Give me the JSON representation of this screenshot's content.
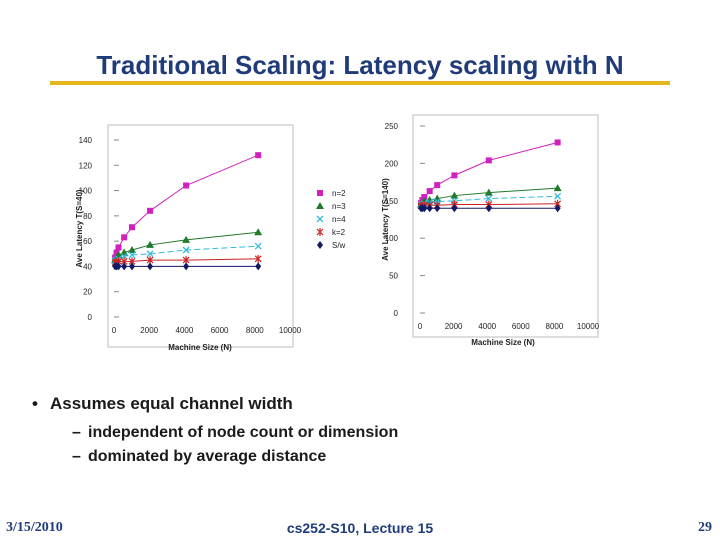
{
  "slide": {
    "title": "Traditional Scaling: Latency scaling with N",
    "bullets": [
      {
        "text": "Assumes equal channel width",
        "sub": [
          "independent of node count or dimension",
          "dominated by average distance"
        ]
      }
    ],
    "footer": {
      "date": "3/15/2010",
      "course": "cs252-S10, Lecture 15",
      "page": "29"
    }
  },
  "chart_data": [
    {
      "type": "scatter",
      "xlabel": "Machine Size (N)",
      "ylabel": "Ave Latency T(S=40)",
      "xlim": [
        0,
        10000
      ],
      "ylim": [
        0,
        140
      ],
      "xticks": [
        "0",
        "2000",
        "4000",
        "6000",
        "8000",
        "10000"
      ],
      "yticks": [
        "0",
        "20",
        "40",
        "60",
        "80",
        "100",
        "120",
        "140"
      ],
      "series": [
        {
          "name": "n=2",
          "color": "#d020c0",
          "marker": "square",
          "x": [
            64,
            144,
            256,
            576,
            1024,
            2048,
            4096,
            8192
          ],
          "y": [
            47,
            51,
            55,
            63,
            71,
            84,
            104,
            128
          ]
        },
        {
          "name": "n=3",
          "color": "#1f7a2a",
          "marker": "triangle",
          "x": [
            64,
            144,
            256,
            576,
            1024,
            2048,
            4096,
            8192
          ],
          "y": [
            45,
            47,
            49,
            51,
            53,
            57,
            61,
            67
          ]
        },
        {
          "name": "n=4",
          "color": "#33bbe0",
          "marker": "x",
          "x": [
            64,
            144,
            256,
            576,
            1024,
            2048,
            4096,
            8192
          ],
          "y": [
            44,
            45,
            46,
            48,
            49,
            50,
            53,
            56
          ]
        },
        {
          "name": "k=2",
          "color": "#cc2222",
          "marker": "star",
          "x": [
            64,
            144,
            256,
            576,
            1024,
            2048,
            4096,
            8192
          ],
          "y": [
            43,
            43,
            44,
            44,
            44,
            45,
            45,
            46
          ]
        },
        {
          "name": "S/w",
          "color": "#111a66",
          "marker": "diamond",
          "x": [
            64,
            144,
            256,
            576,
            1024,
            2048,
            4096,
            8192
          ],
          "y": [
            40,
            40,
            40,
            40,
            40,
            40,
            40,
            40
          ]
        }
      ]
    },
    {
      "type": "scatter",
      "xlabel": "Machine Size (N)",
      "ylabel": "Ave Latency T(S=140)",
      "xlim": [
        0,
        10000
      ],
      "ylim": [
        0,
        250
      ],
      "xticks": [
        "0",
        "2000",
        "4000",
        "6000",
        "8000",
        "10000"
      ],
      "yticks": [
        "0",
        "50",
        "100",
        "150",
        "200",
        "250"
      ],
      "series": [
        {
          "name": "n=2",
          "color": "#d020c0",
          "marker": "square",
          "x": [
            64,
            144,
            256,
            576,
            1024,
            2048,
            4096,
            8192
          ],
          "y": [
            147,
            151,
            155,
            163,
            171,
            184,
            204,
            228
          ]
        },
        {
          "name": "n=3",
          "color": "#1f7a2a",
          "marker": "triangle",
          "x": [
            64,
            144,
            256,
            576,
            1024,
            2048,
            4096,
            8192
          ],
          "y": [
            145,
            147,
            149,
            151,
            153,
            157,
            161,
            167
          ]
        },
        {
          "name": "n=4",
          "color": "#33bbe0",
          "marker": "x",
          "x": [
            64,
            144,
            256,
            576,
            1024,
            2048,
            4096,
            8192
          ],
          "y": [
            144,
            145,
            146,
            148,
            149,
            150,
            153,
            156
          ]
        },
        {
          "name": "k=2",
          "color": "#cc2222",
          "marker": "star",
          "x": [
            64,
            144,
            256,
            576,
            1024,
            2048,
            4096,
            8192
          ],
          "y": [
            143,
            143,
            144,
            144,
            144,
            145,
            145,
            146
          ]
        },
        {
          "name": "S/w",
          "color": "#111a66",
          "marker": "diamond",
          "x": [
            64,
            144,
            256,
            576,
            1024,
            2048,
            4096,
            8192
          ],
          "y": [
            140,
            140,
            140,
            140,
            140,
            140,
            140,
            140
          ]
        }
      ]
    }
  ]
}
